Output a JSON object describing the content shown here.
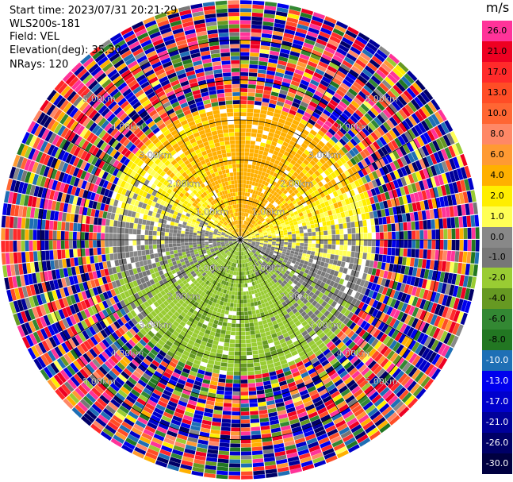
{
  "header": {
    "start_time": "Start time: 2023/07/31 20:21:29",
    "instrument": "WLS200s-181",
    "field": "Field: VEL",
    "elevation": "Elevation(deg): 35.30",
    "nrays": "NRays: 120"
  },
  "colorbar": {
    "unit": "m/s",
    "levels": [
      {
        "label": "26.0",
        "color": "#ff3399"
      },
      {
        "label": "21.0",
        "color": "#ee0022"
      },
      {
        "label": "17.0",
        "color": "#ff2a2a"
      },
      {
        "label": "13.0",
        "color": "#ff4d26"
      },
      {
        "label": "10.0",
        "color": "#ff6633"
      },
      {
        "label": "8.0",
        "color": "#ff8866"
      },
      {
        "label": "6.0",
        "color": "#ff9a33"
      },
      {
        "label": "4.0",
        "color": "#ffb000"
      },
      {
        "label": "2.0",
        "color": "#ffee00"
      },
      {
        "label": "1.0",
        "color": "#ffff55"
      },
      {
        "label": "0.0",
        "color": "#888888"
      },
      {
        "label": "-1.0",
        "color": "#777777"
      },
      {
        "label": "-2.0",
        "color": "#99cc33"
      },
      {
        "label": "-4.0",
        "color": "#669922"
      },
      {
        "label": "-6.0",
        "color": "#338833"
      },
      {
        "label": "-8.0",
        "color": "#227722"
      },
      {
        "label": "-10.0",
        "color": "#1e6fb5"
      },
      {
        "label": "-13.0",
        "color": "#0000ee"
      },
      {
        "label": "-17.0",
        "color": "#0000cc"
      },
      {
        "label": "-21.0",
        "color": "#000099"
      },
      {
        "label": "-26.0",
        "color": "#000066"
      },
      {
        "label": "-30.0",
        "color": "#000040"
      }
    ]
  },
  "chart_data": {
    "type": "heatmap",
    "projection": "polar PPI",
    "field": "VEL",
    "units": "m/s",
    "nrays": 120,
    "vmin": -30.0,
    "vmax": 26.0,
    "rings_km": [
      1.0,
      2.0,
      3.0,
      4.0,
      5.0
    ],
    "ring_labels": [
      "1.00km",
      "2.00km",
      "3.00km",
      "4.00km",
      "5.00km"
    ],
    "max_range_km": 6.0,
    "clean_range_km": 3.4,
    "radials_deg": [
      0,
      30,
      60,
      90,
      120,
      150,
      180,
      210,
      240,
      270,
      300,
      330
    ],
    "sectors": [
      {
        "azimuth_from": 300,
        "azimuth_to": 60,
        "dominant": "2.0 to 6.0",
        "note": "yellow/orange towards north"
      },
      {
        "azimuth_from": 60,
        "azimuth_to": 120,
        "dominant": "0.0 to 2.0",
        "note": "grey/yellow east"
      },
      {
        "azimuth_from": 120,
        "azimuth_to": 240,
        "dominant": "-2.0 to -6.0",
        "note": "green south"
      },
      {
        "azimuth_from": 240,
        "azimuth_to": 300,
        "dominant": "0.0 to 2.0",
        "note": "grey/yellow west"
      }
    ],
    "noise_beyond_km": 3.4,
    "grid": true
  }
}
